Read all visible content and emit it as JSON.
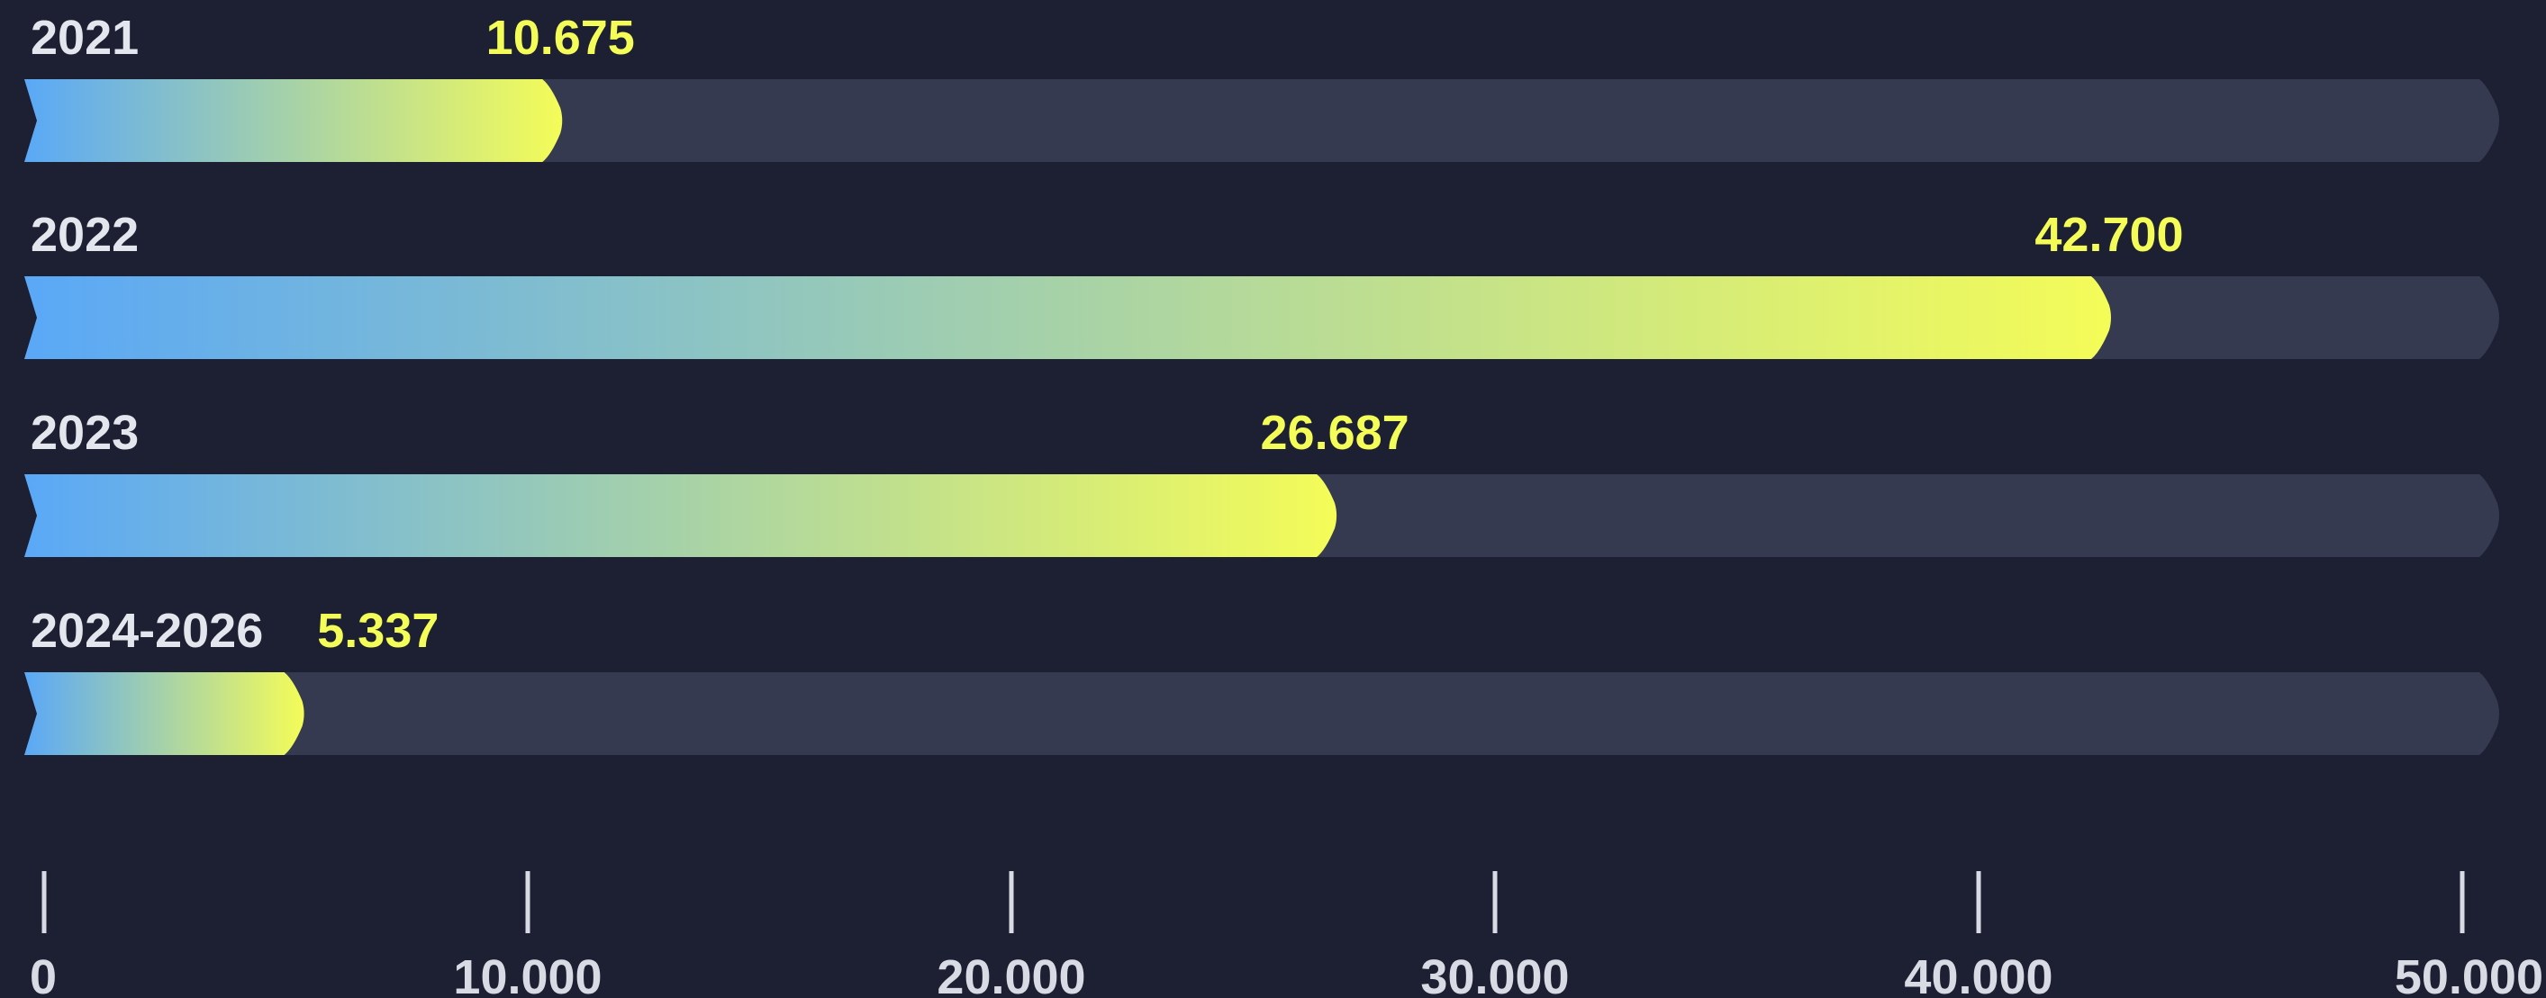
{
  "chart_data": {
    "type": "bar",
    "orientation": "horizontal",
    "categories": [
      "2021",
      "2022",
      "2023",
      "2024-2026"
    ],
    "values": [
      10675,
      42700,
      26687,
      5337
    ],
    "value_labels": [
      "10.675",
      "42.700",
      "26.687",
      "5.337"
    ],
    "color_start": "#5aa8f7",
    "color_end": "#f4fc58",
    "track_color": "#363a50",
    "xlim": [
      0,
      50000
    ],
    "xticks": [
      0,
      {
        "value": 10000,
        "label": "10.000"
      },
      {
        "value": 20000,
        "label": "20.000"
      },
      {
        "value": 30000,
        "label": "30.000"
      },
      {
        "value": 40000,
        "label": "40.000"
      },
      {
        "value": 50000,
        "label": "50.000"
      }
    ]
  }
}
